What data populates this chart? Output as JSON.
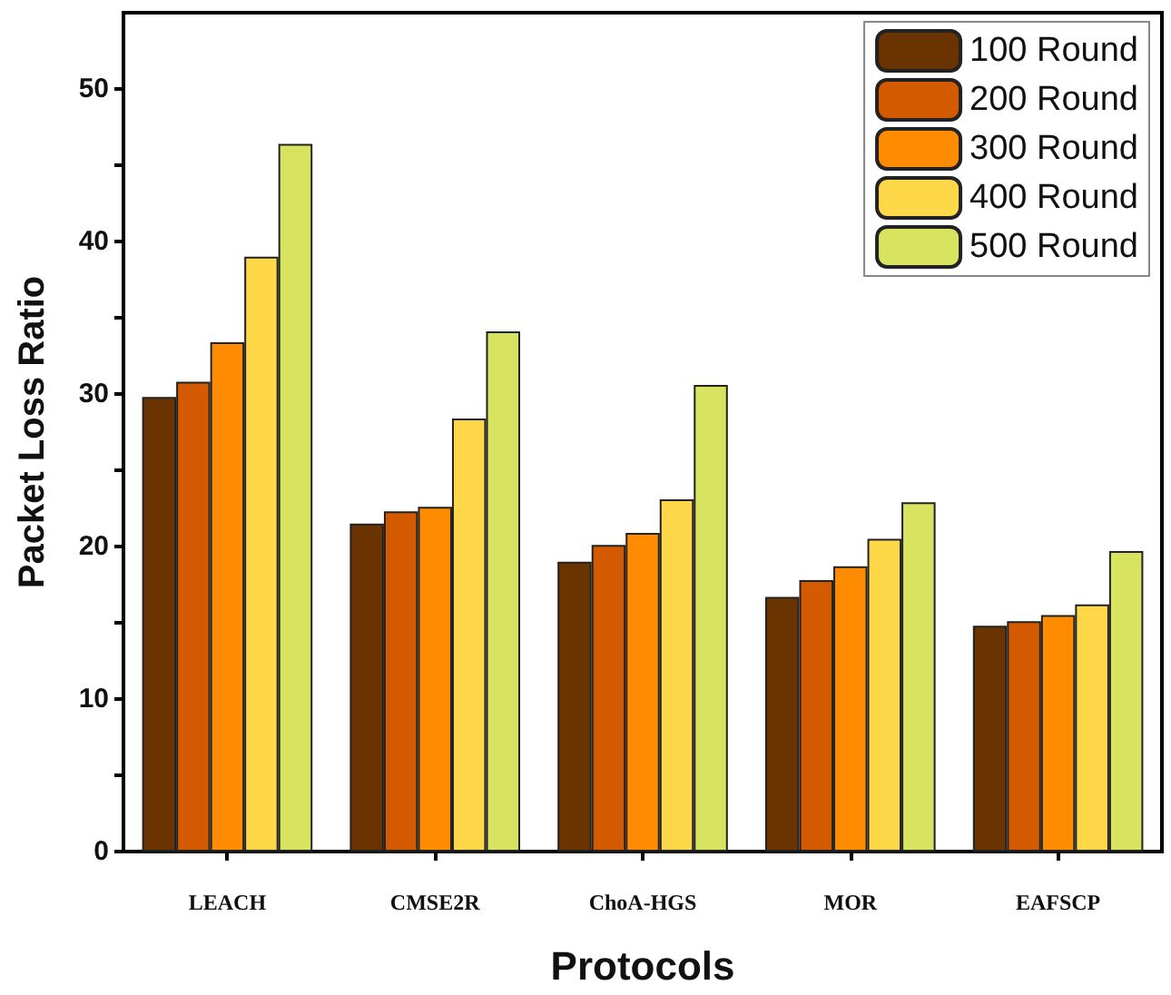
{
  "chart_data": {
    "type": "bar",
    "xlabel": "Protocols",
    "ylabel": "Packet Loss Ratio",
    "categories": [
      "LEACH",
      "CMSE2R",
      "ChoA-HGS",
      "MOR",
      "EAFSCP"
    ],
    "series": [
      {
        "name": "100 Round",
        "color": "#6b3300",
        "values": [
          29.8,
          21.5,
          19.0,
          16.7,
          14.8
        ]
      },
      {
        "name": "200 Round",
        "color": "#d45a00",
        "values": [
          30.8,
          22.3,
          20.1,
          17.8,
          15.1
        ]
      },
      {
        "name": "300 Round",
        "color": "#ff8c00",
        "values": [
          33.4,
          22.6,
          20.9,
          18.7,
          15.5
        ]
      },
      {
        "name": "400 Round",
        "color": "#ffd84a",
        "values": [
          39.0,
          28.4,
          23.1,
          20.5,
          16.2
        ]
      },
      {
        "name": "500 Round",
        "color": "#d8e460",
        "values": [
          46.4,
          34.1,
          30.6,
          22.9,
          19.7
        ]
      }
    ],
    "ylim": [
      0,
      55
    ],
    "yticks": [
      0,
      {
        "value": 5,
        "label": null
      },
      10,
      {
        "value": 15,
        "label": null
      },
      20,
      {
        "value": 25,
        "label": null
      },
      30,
      {
        "value": 35,
        "label": null
      },
      40,
      {
        "value": 45,
        "label": null
      },
      50
    ],
    "legend": "top right",
    "grid": false
  }
}
